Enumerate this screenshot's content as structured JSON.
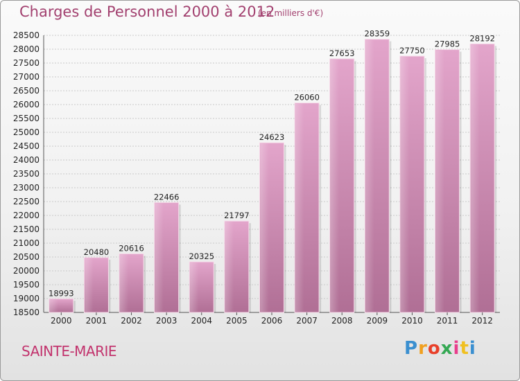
{
  "header": {
    "title": "Charges de Personnel 2000 à 2012",
    "subtitle": "(en milliers d'€)"
  },
  "footer": {
    "city": "SAINTE-MARIE",
    "logo_letters": [
      "P",
      "r",
      "o",
      "x",
      "i",
      "t",
      "i"
    ]
  },
  "colors": {
    "bar": "#c87aa6",
    "title": "#a2406f",
    "city": "#c2336d"
  },
  "chart_data": {
    "type": "bar",
    "title": "Charges de Personnel 2000 à 2012",
    "subtitle": "(en milliers d'€)",
    "categories": [
      "2000",
      "2001",
      "2002",
      "2003",
      "2004",
      "2005",
      "2006",
      "2007",
      "2008",
      "2009",
      "2010",
      "2011",
      "2012"
    ],
    "values": [
      18993,
      20480,
      20616,
      22466,
      20325,
      21797,
      24623,
      26060,
      27653,
      28359,
      27750,
      27985,
      28192
    ],
    "ylim": [
      18500,
      28500
    ],
    "yticks": [
      18500,
      19000,
      19500,
      20000,
      20500,
      21000,
      21500,
      22000,
      22500,
      23000,
      23500,
      24000,
      24500,
      25000,
      25500,
      26000,
      26500,
      27000,
      27500,
      28000,
      28500
    ],
    "grid": true
  }
}
